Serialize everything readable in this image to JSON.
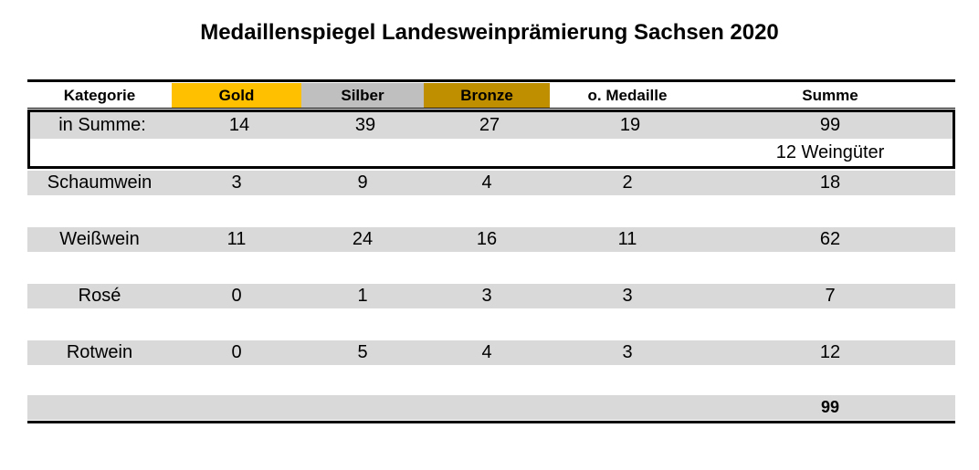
{
  "title": "Medaillenspiegel Landesweinprämierung Sachsen 2020",
  "header": {
    "kategorie": "Kategorie",
    "gold": "Gold",
    "silber": "Silber",
    "bronze": "Bronze",
    "ohne": "o. Medaille",
    "summe": "Summe"
  },
  "colors": {
    "gold": "#ffc000",
    "silber": "#bfbfbf",
    "bronze": "#bf8f00",
    "shade": "#d9d9d9"
  },
  "summary": {
    "label": "in Summe:",
    "gold": "14",
    "silber": "39",
    "bronze": "27",
    "ohne": "19",
    "summe": "99",
    "weingueter": "12 Weingüter"
  },
  "rows": [
    {
      "label": "Schaumwein",
      "gold": "3",
      "silber": "9",
      "bronze": "4",
      "ohne": "2",
      "summe": "18"
    },
    {
      "label": "Weißwein",
      "gold": "11",
      "silber": "24",
      "bronze": "16",
      "ohne": "11",
      "summe": "62"
    },
    {
      "label": "Rosé",
      "gold": "0",
      "silber": "1",
      "bronze": "3",
      "ohne": "3",
      "summe": "7"
    },
    {
      "label": "Rotwein",
      "gold": "0",
      "silber": "5",
      "bronze": "4",
      "ohne": "3",
      "summe": "12"
    }
  ],
  "total": "99"
}
